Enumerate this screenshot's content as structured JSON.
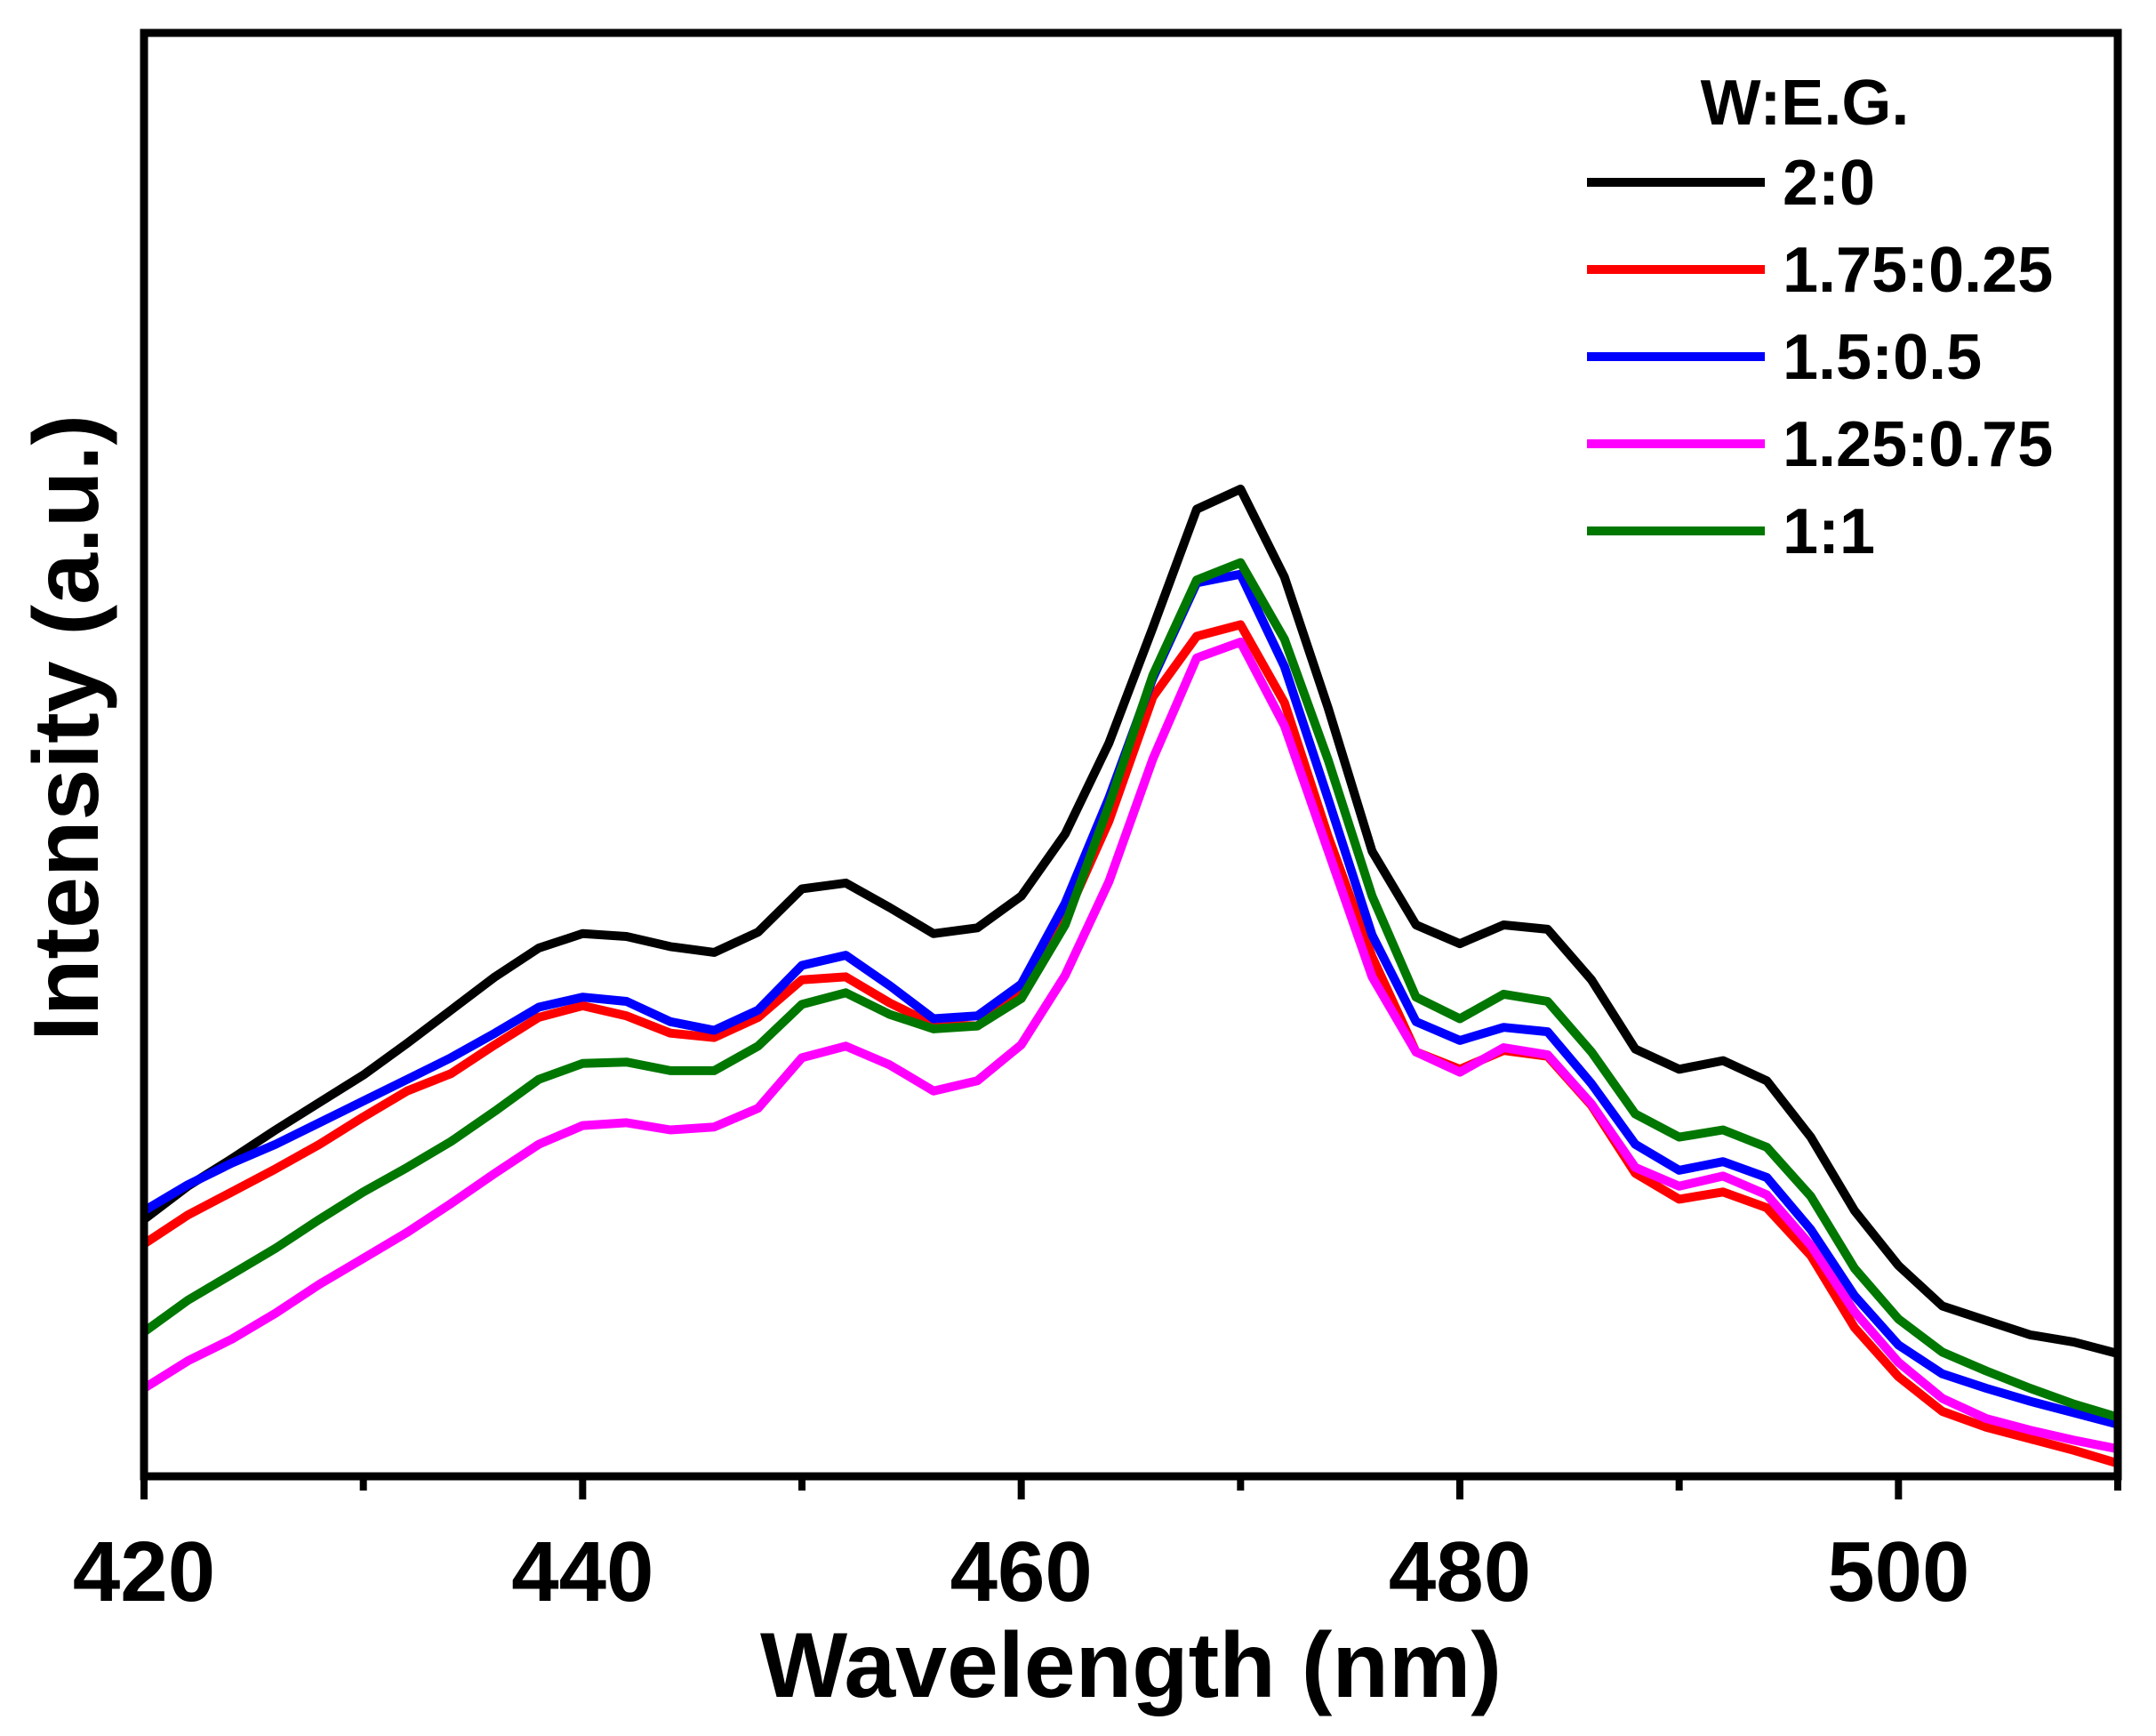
{
  "chart_data": {
    "type": "line",
    "xlabel": "Wavelength (nm)",
    "ylabel": "Intensity (a.u.)",
    "xlim": [
      420,
      510
    ],
    "ylim": [
      0,
      100
    ],
    "x_ticks": [
      "420",
      "440",
      "460",
      "480",
      "500"
    ],
    "x_tick_values": [
      420,
      440,
      460,
      480,
      500
    ],
    "y_ticks_shown": false,
    "grid": false,
    "legend": {
      "title": "W:E.G.",
      "position": "top-right"
    },
    "x": [
      420,
      422,
      424,
      426,
      428,
      430,
      432,
      434,
      436,
      438,
      440,
      442,
      444,
      446,
      448,
      450,
      452,
      454,
      456,
      458,
      460,
      462,
      464,
      466,
      468,
      470,
      472,
      474,
      476,
      478,
      480,
      482,
      484,
      486,
      488,
      490,
      492,
      494,
      496,
      498,
      500,
      502,
      504,
      506,
      508,
      510
    ],
    "series": [
      {
        "name": "2:0",
        "color": "#000000",
        "values": [
          17.8,
          20.1,
          22.0,
          24.0,
          25.9,
          27.8,
          30.0,
          32.3,
          34.6,
          36.6,
          37.6,
          37.4,
          36.7,
          36.3,
          37.7,
          40.7,
          41.1,
          39.4,
          37.6,
          38.0,
          40.2,
          44.5,
          50.8,
          58.8,
          67.0,
          68.4,
          62.3,
          53.2,
          43.3,
          38.2,
          36.9,
          38.2,
          37.9,
          34.4,
          29.6,
          28.2,
          28.8,
          27.4,
          23.5,
          18.4,
          14.6,
          11.8,
          10.8,
          9.8,
          9.3,
          8.5
        ]
      },
      {
        "name": "1.75:0.25",
        "color": "#ff0000",
        "values": [
          16.1,
          18.1,
          19.7,
          21.3,
          23.0,
          24.9,
          26.7,
          27.9,
          29.9,
          31.8,
          32.6,
          31.9,
          30.7,
          30.4,
          31.8,
          34.4,
          34.6,
          32.8,
          31.3,
          31.2,
          33.5,
          38.6,
          45.4,
          54.0,
          58.2,
          59.0,
          53.6,
          44.3,
          36.0,
          29.4,
          28.2,
          29.5,
          29.1,
          25.7,
          21.0,
          19.2,
          19.7,
          18.6,
          15.3,
          10.3,
          6.9,
          4.5,
          3.4,
          2.6,
          1.8,
          0.9
        ]
      },
      {
        "name": "1.5:0.5",
        "color": "#0000ff",
        "values": [
          18.4,
          20.2,
          21.7,
          23.0,
          24.5,
          26.0,
          27.5,
          29.0,
          30.7,
          32.5,
          33.2,
          32.9,
          31.5,
          30.9,
          32.3,
          35.4,
          36.1,
          34.0,
          31.7,
          31.9,
          34.1,
          39.7,
          47.0,
          55.3,
          61.9,
          62.5,
          56.1,
          46.9,
          37.5,
          31.5,
          30.2,
          31.1,
          30.8,
          27.2,
          23.0,
          21.2,
          21.8,
          20.7,
          17.1,
          12.5,
          9.1,
          7.1,
          6.1,
          5.2,
          4.4,
          3.6
        ]
      },
      {
        "name": "1.25:0.75",
        "color": "#ff00ff",
        "values": [
          6.1,
          8.0,
          9.5,
          11.3,
          13.3,
          15.1,
          16.9,
          18.9,
          21.0,
          23.0,
          24.3,
          24.5,
          24.0,
          24.2,
          25.5,
          29.0,
          29.8,
          28.5,
          26.7,
          27.4,
          29.9,
          34.7,
          41.2,
          49.7,
          56.7,
          57.8,
          52.0,
          43.3,
          34.6,
          29.4,
          28.0,
          29.7,
          29.2,
          25.8,
          21.4,
          20.1,
          20.8,
          19.5,
          16.0,
          11.4,
          7.9,
          5.4,
          4.0,
          3.2,
          2.5,
          1.9
        ]
      },
      {
        "name": "1:1",
        "color": "#007700",
        "values": [
          10.0,
          12.2,
          14.0,
          15.8,
          17.8,
          19.7,
          21.4,
          23.2,
          25.3,
          27.5,
          28.6,
          28.7,
          28.1,
          28.1,
          29.8,
          32.7,
          33.5,
          32.0,
          31.0,
          31.2,
          33.1,
          38.2,
          46.5,
          55.5,
          62.1,
          63.3,
          58.0,
          49.6,
          40.2,
          33.2,
          31.7,
          33.4,
          32.9,
          29.4,
          25.1,
          23.5,
          24.0,
          22.8,
          19.4,
          14.4,
          10.9,
          8.6,
          7.3,
          6.1,
          5.0,
          4.1
        ]
      }
    ]
  }
}
